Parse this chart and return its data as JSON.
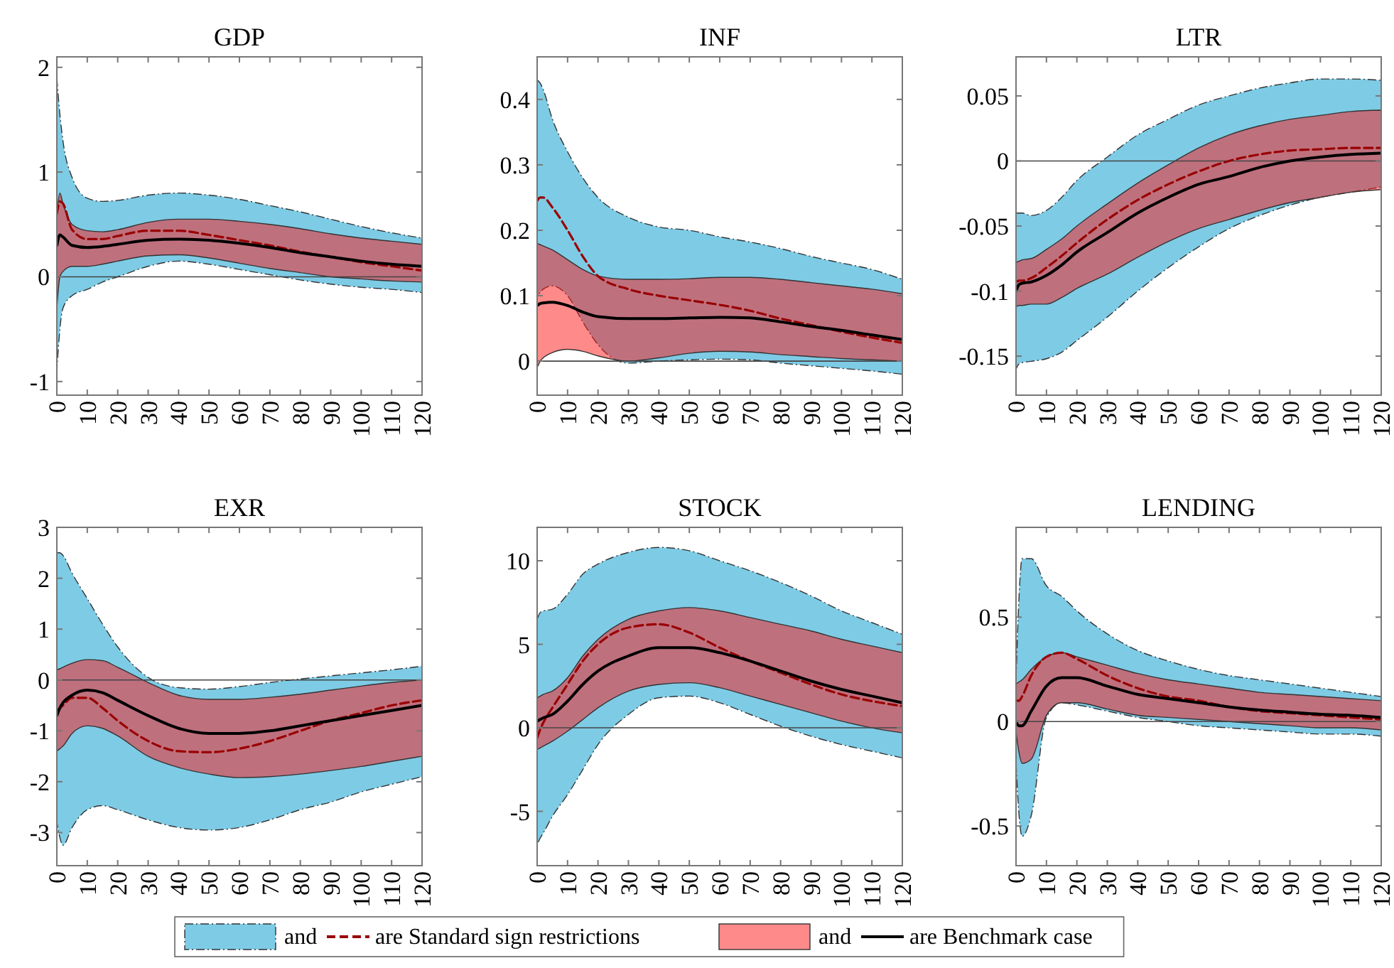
{
  "chart_data": [
    {
      "type": "line",
      "title": "GDP",
      "x": [
        0,
        1,
        2,
        5,
        10,
        15,
        20,
        30,
        40,
        50,
        60,
        70,
        80,
        90,
        100,
        110,
        120
      ],
      "xlim": [
        0,
        120
      ],
      "xticks": [
        0,
        10,
        20,
        30,
        40,
        50,
        60,
        70,
        80,
        90,
        100,
        110,
        120
      ],
      "ylim": [
        -1.13,
        2.1
      ],
      "yticks": [
        -1,
        0,
        1,
        2
      ],
      "ref_lines": [
        {
          "axis": "y",
          "value": 0,
          "color": "#444444"
        }
      ],
      "series": [
        {
          "color": "#990000",
          "line_style": "dashed",
          "values": [
            0.6,
            0.72,
            0.7,
            0.45,
            0.36,
            0.36,
            0.39,
            0.44,
            0.44,
            0.4,
            0.35,
            0.3,
            0.24,
            0.19,
            0.14,
            0.1,
            0.06
          ],
          "lower": [
            -0.9,
            -0.5,
            -0.3,
            -0.18,
            -0.12,
            -0.05,
            0.0,
            0.1,
            0.15,
            0.12,
            0.07,
            0.02,
            -0.03,
            -0.07,
            -0.1,
            -0.12,
            -0.15
          ],
          "upper": [
            1.9,
            1.55,
            1.3,
            0.95,
            0.75,
            0.72,
            0.73,
            0.78,
            0.8,
            0.78,
            0.74,
            0.68,
            0.62,
            0.55,
            0.48,
            0.42,
            0.37
          ]
        },
        {
          "color": "#000000",
          "line_style": "solid",
          "values": [
            0.3,
            0.4,
            0.38,
            0.3,
            0.28,
            0.29,
            0.31,
            0.35,
            0.36,
            0.35,
            0.32,
            0.28,
            0.23,
            0.19,
            0.15,
            0.12,
            0.1
          ],
          "lower": [
            -0.3,
            0,
            0.05,
            0.1,
            0.1,
            0.12,
            0.15,
            0.2,
            0.21,
            0.18,
            0.13,
            0.08,
            0.04,
            0,
            -0.02,
            -0.04,
            -0.05
          ],
          "upper": [
            0.6,
            0.8,
            0.7,
            0.5,
            0.44,
            0.43,
            0.45,
            0.52,
            0.55,
            0.55,
            0.53,
            0.5,
            0.46,
            0.41,
            0.37,
            0.34,
            0.31
          ]
        }
      ]
    },
    {
      "type": "line",
      "title": "INF",
      "x": [
        0,
        1,
        2,
        5,
        10,
        15,
        20,
        30,
        40,
        50,
        60,
        70,
        80,
        90,
        100,
        110,
        120
      ],
      "xlim": [
        0,
        120
      ],
      "xticks": [
        0,
        10,
        20,
        30,
        40,
        50,
        60,
        70,
        80,
        90,
        100,
        110,
        120
      ],
      "ylim": [
        -0.052,
        0.465
      ],
      "yticks": [
        0,
        0.1,
        0.2,
        0.3,
        0.4
      ],
      "ref_lines": [
        {
          "axis": "y",
          "value": 0,
          "color": "#444444"
        }
      ],
      "series": [
        {
          "color": "#990000",
          "line_style": "dashed",
          "values": [
            0.245,
            0.25,
            0.25,
            0.235,
            0.2,
            0.16,
            0.13,
            0.11,
            0.1,
            0.093,
            0.086,
            0.077,
            0.065,
            0.055,
            0.045,
            0.036,
            0.028
          ],
          "lower": [
            0.1,
            0.105,
            0.11,
            0.115,
            0.1,
            0.06,
            0.025,
            -0.003,
            0,
            0.002,
            0.003,
            0.002,
            -0.003,
            -0.007,
            -0.011,
            -0.015,
            -0.02
          ],
          "upper": [
            0.43,
            0.425,
            0.415,
            0.37,
            0.32,
            0.28,
            0.25,
            0.22,
            0.205,
            0.2,
            0.19,
            0.182,
            0.172,
            0.16,
            0.15,
            0.14,
            0.125
          ]
        },
        {
          "color": "#000000",
          "line_style": "solid",
          "values": [
            0.085,
            0.088,
            0.089,
            0.09,
            0.085,
            0.075,
            0.068,
            0.065,
            0.065,
            0.066,
            0.067,
            0.066,
            0.06,
            0.053,
            0.047,
            0.04,
            0.033
          ],
          "lower": [
            -0.01,
            0,
            0.005,
            0.013,
            0.018,
            0.015,
            0.008,
            0,
            0.005,
            0.012,
            0.015,
            0.014,
            0.01,
            0.007,
            0.004,
            0.002,
            0
          ],
          "upper": [
            0.18,
            0.178,
            0.176,
            0.17,
            0.155,
            0.14,
            0.13,
            0.125,
            0.125,
            0.126,
            0.128,
            0.128,
            0.125,
            0.12,
            0.115,
            0.11,
            0.103
          ]
        }
      ]
    },
    {
      "type": "line",
      "title": "LTR",
      "x": [
        0,
        1,
        2,
        5,
        10,
        15,
        20,
        30,
        40,
        50,
        60,
        70,
        80,
        90,
        100,
        110,
        120
      ],
      "xlim": [
        0,
        120
      ],
      "xticks": [
        0,
        10,
        20,
        30,
        40,
        50,
        60,
        70,
        80,
        90,
        100,
        110,
        120
      ],
      "ylim": [
        -0.18,
        0.08
      ],
      "yticks": [
        -0.15,
        -0.1,
        -0.05,
        0,
        0.05
      ],
      "ref_lines": [
        {
          "axis": "y",
          "value": 0,
          "color": "#444444"
        }
      ],
      "series": [
        {
          "color": "#990000",
          "line_style": "dashed",
          "values": [
            -0.093,
            -0.092,
            -0.092,
            -0.09,
            -0.082,
            -0.073,
            -0.063,
            -0.045,
            -0.03,
            -0.018,
            -0.008,
            0,
            0.005,
            0.008,
            0.009,
            0.01,
            0.01
          ],
          "lower": [
            -0.16,
            -0.156,
            -0.155,
            -0.154,
            -0.152,
            -0.147,
            -0.138,
            -0.12,
            -0.1,
            -0.082,
            -0.066,
            -0.052,
            -0.042,
            -0.034,
            -0.028,
            -0.024,
            -0.02
          ],
          "upper": [
            -0.04,
            -0.04,
            -0.04,
            -0.042,
            -0.038,
            -0.028,
            -0.015,
            0.003,
            0.02,
            0.032,
            0.043,
            0.05,
            0.056,
            0.06,
            0.063,
            0.063,
            0.062
          ]
        },
        {
          "color": "#000000",
          "line_style": "solid",
          "values": [
            -0.1,
            -0.095,
            -0.094,
            -0.093,
            -0.088,
            -0.08,
            -0.07,
            -0.055,
            -0.04,
            -0.028,
            -0.018,
            -0.012,
            -0.005,
            0,
            0.003,
            0.005,
            0.006
          ],
          "lower": [
            -0.112,
            -0.111,
            -0.111,
            -0.11,
            -0.11,
            -0.105,
            -0.098,
            -0.087,
            -0.074,
            -0.062,
            -0.052,
            -0.045,
            -0.038,
            -0.032,
            -0.028,
            -0.024,
            -0.022
          ],
          "upper": [
            -0.078,
            -0.077,
            -0.076,
            -0.075,
            -0.068,
            -0.06,
            -0.05,
            -0.033,
            -0.017,
            -0.003,
            0.01,
            0.02,
            0.027,
            0.032,
            0.035,
            0.038,
            0.039
          ]
        }
      ]
    },
    {
      "type": "line",
      "title": "EXR",
      "x": [
        0,
        1,
        2,
        5,
        10,
        15,
        20,
        30,
        40,
        50,
        60,
        70,
        80,
        90,
        100,
        110,
        120
      ],
      "xlim": [
        0,
        120
      ],
      "xticks": [
        0,
        10,
        20,
        30,
        40,
        50,
        60,
        70,
        80,
        90,
        100,
        110,
        120
      ],
      "ylim": [
        -3.65,
        3
      ],
      "yticks": [
        -3,
        -2,
        -1,
        0,
        1,
        2,
        3
      ],
      "ref_lines": [
        {
          "axis": "y",
          "value": 0,
          "color": "#444444"
        }
      ],
      "series": [
        {
          "color": "#990000",
          "line_style": "dashed",
          "values": [
            -0.6,
            -0.55,
            -0.5,
            -0.35,
            -0.35,
            -0.55,
            -0.8,
            -1.2,
            -1.4,
            -1.42,
            -1.35,
            -1.2,
            -1.0,
            -0.8,
            -0.65,
            -0.5,
            -0.4
          ],
          "lower": [
            -2.8,
            -3.1,
            -3.25,
            -2.9,
            -2.55,
            -2.47,
            -2.55,
            -2.75,
            -2.9,
            -2.95,
            -2.9,
            -2.75,
            -2.55,
            -2.4,
            -2.2,
            -2.05,
            -1.9
          ],
          "upper": [
            2.5,
            2.5,
            2.45,
            2.1,
            1.6,
            1.1,
            0.65,
            0.05,
            -0.15,
            -0.18,
            -0.13,
            -0.05,
            0.02,
            0.08,
            0.14,
            0.2,
            0.27
          ]
        },
        {
          "color": "#000000",
          "line_style": "solid",
          "values": [
            -0.7,
            -0.55,
            -0.45,
            -0.3,
            -0.2,
            -0.25,
            -0.4,
            -0.7,
            -0.95,
            -1.05,
            -1.05,
            -1.0,
            -0.9,
            -0.8,
            -0.7,
            -0.6,
            -0.5
          ],
          "lower": [
            -1.4,
            -1.35,
            -1.3,
            -1.05,
            -0.9,
            -0.95,
            -1.1,
            -1.5,
            -1.72,
            -1.85,
            -1.92,
            -1.9,
            -1.85,
            -1.78,
            -1.7,
            -1.6,
            -1.5
          ],
          "upper": [
            0.2,
            0.22,
            0.25,
            0.33,
            0.4,
            0.38,
            0.25,
            -0.05,
            -0.3,
            -0.38,
            -0.38,
            -0.34,
            -0.28,
            -0.2,
            -0.12,
            -0.05,
            0
          ]
        }
      ]
    },
    {
      "type": "line",
      "title": "STOCK",
      "x": [
        0,
        1,
        2,
        5,
        10,
        15,
        20,
        30,
        40,
        50,
        60,
        70,
        80,
        90,
        100,
        110,
        120
      ],
      "xlim": [
        0,
        120
      ],
      "xticks": [
        0,
        10,
        20,
        30,
        40,
        50,
        60,
        70,
        80,
        90,
        100,
        110,
        120
      ],
      "ylim": [
        -8.25,
        12
      ],
      "yticks": [
        -5,
        0,
        5,
        10
      ],
      "ref_lines": [
        {
          "axis": "y",
          "value": 0,
          "color": "#444444"
        }
      ],
      "series": [
        {
          "color": "#990000",
          "line_style": "dashed",
          "values": [
            -0.6,
            -0.1,
            0.3,
            1.2,
            2.6,
            4.0,
            5.0,
            6.0,
            6.2,
            5.7,
            4.8,
            4.0,
            3.3,
            2.6,
            2.0,
            1.6,
            1.3
          ],
          "lower": [
            -7.0,
            -6.6,
            -6.3,
            -5.3,
            -4.0,
            -2.5,
            -1.0,
            0.8,
            1.8,
            1.9,
            1.5,
            0.8,
            0.1,
            -0.5,
            -1.0,
            -1.4,
            -1.8
          ],
          "upper": [
            6.5,
            6.9,
            7.0,
            7.1,
            8.0,
            9.2,
            9.8,
            10.5,
            10.8,
            10.6,
            10.0,
            9.4,
            8.7,
            7.9,
            7.0,
            6.3,
            5.6
          ]
        },
        {
          "color": "#000000",
          "line_style": "solid",
          "values": [
            0.4,
            0.5,
            0.6,
            0.8,
            1.6,
            2.6,
            3.4,
            4.3,
            4.8,
            4.8,
            4.5,
            4.0,
            3.4,
            2.8,
            2.3,
            1.9,
            1.5
          ],
          "lower": [
            -1.3,
            -1.2,
            -1.1,
            -0.8,
            -0.2,
            0.5,
            1.2,
            2.2,
            2.6,
            2.7,
            2.4,
            1.9,
            1.4,
            0.9,
            0.4,
            0,
            -0.3
          ],
          "upper": [
            1.8,
            1.9,
            2.0,
            2.2,
            3.0,
            4.3,
            5.3,
            6.5,
            7.0,
            7.2,
            7.0,
            6.6,
            6.2,
            5.8,
            5.3,
            4.9,
            4.5
          ]
        }
      ]
    },
    {
      "type": "line",
      "title": "LENDING",
      "x": [
        0,
        1,
        2,
        5,
        10,
        15,
        20,
        30,
        40,
        50,
        60,
        70,
        80,
        90,
        100,
        110,
        120
      ],
      "xlim": [
        0,
        120
      ],
      "xticks": [
        0,
        10,
        20,
        30,
        40,
        50,
        60,
        70,
        80,
        90,
        100,
        110,
        120
      ],
      "ylim": [
        -0.69,
        0.93
      ],
      "yticks": [
        -0.5,
        0,
        0.5
      ],
      "ref_lines": [
        {
          "axis": "y",
          "value": 0,
          "color": "#444444"
        }
      ],
      "legend": "bottom",
      "legend_title": "and",
      "series": [
        {
          "name": "are Standard sign restrictions",
          "color": "#990000",
          "line_style": "dashed",
          "values": [
            0.1,
            0.1,
            0.12,
            0.22,
            0.31,
            0.33,
            0.3,
            0.22,
            0.16,
            0.12,
            0.1,
            0.07,
            0.05,
            0.04,
            0.03,
            0.02,
            0.01
          ],
          "lower": [
            -0.2,
            -0.45,
            -0.55,
            -0.45,
            0.02,
            0.09,
            0.08,
            0.05,
            0.02,
            0,
            -0.02,
            -0.03,
            -0.04,
            -0.05,
            -0.06,
            -0.06,
            -0.07
          ],
          "upper": [
            0.2,
            0.6,
            0.78,
            0.78,
            0.65,
            0.6,
            0.53,
            0.42,
            0.34,
            0.29,
            0.25,
            0.22,
            0.2,
            0.18,
            0.16,
            0.14,
            0.12
          ]
        },
        {
          "name": "are Benchmark case",
          "color": "#000000",
          "line_style": "solid",
          "values": [
            0,
            -0.02,
            -0.02,
            0.05,
            0.17,
            0.21,
            0.21,
            0.17,
            0.13,
            0.11,
            0.09,
            0.07,
            0.055,
            0.045,
            0.035,
            0.03,
            0.02
          ],
          "lower": [
            -0.05,
            -0.15,
            -0.2,
            -0.18,
            0.03,
            0.09,
            0.09,
            0.06,
            0.03,
            0.02,
            0.01,
            0,
            -0.01,
            -0.02,
            -0.03,
            -0.03,
            -0.04
          ],
          "upper": [
            0.18,
            0.19,
            0.2,
            0.25,
            0.31,
            0.33,
            0.31,
            0.27,
            0.23,
            0.2,
            0.18,
            0.16,
            0.14,
            0.13,
            0.12,
            0.11,
            0.1
          ]
        }
      ]
    }
  ]
}
